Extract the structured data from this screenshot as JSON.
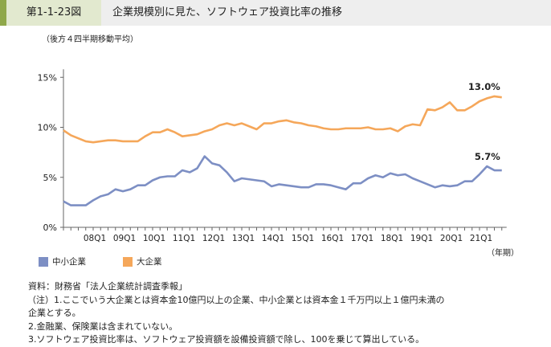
{
  "header": {
    "figure_no": "第1-1-23図",
    "title": "企業規模別に見た、ソフトウェア投資比率の推移"
  },
  "colors": {
    "sme": "#7d8fc4",
    "large": "#f5a75a",
    "stripe": "#8fa84a"
  },
  "chart_data": {
    "type": "line",
    "subtitle": "（後方４四半期移動平均）",
    "xlabel": "（年期）",
    "ylim": [
      0,
      15
    ],
    "yticks": [
      "0%",
      "5%",
      "10%",
      "15%"
    ],
    "xtick_labels": [
      "08Q1",
      "09Q1",
      "10Q1",
      "11Q1",
      "12Q1",
      "13Q1",
      "14Q1",
      "15Q1",
      "16Q1",
      "17Q1",
      "18Q1",
      "19Q1",
      "20Q1",
      "21Q1"
    ],
    "x_range": [
      "07Q1",
      "21Q4"
    ],
    "legend_position": "bottom-left",
    "series": [
      {
        "name": "中小企業",
        "end_label": "5.7%",
        "values": [
          2.6,
          2.2,
          2.2,
          2.2,
          2.7,
          3.1,
          3.3,
          3.8,
          3.6,
          3.8,
          4.2,
          4.2,
          4.7,
          5.0,
          5.1,
          5.1,
          5.7,
          5.5,
          5.9,
          7.1,
          6.4,
          6.2,
          5.5,
          4.6,
          4.9,
          4.8,
          4.7,
          4.6,
          4.1,
          4.3,
          4.2,
          4.1,
          4.0,
          4.0,
          4.3,
          4.3,
          4.2,
          4.0,
          3.8,
          4.4,
          4.4,
          4.9,
          5.2,
          5.0,
          5.4,
          5.2,
          5.3,
          4.9,
          4.6,
          4.3,
          4.0,
          4.2,
          4.1,
          4.2,
          4.6,
          4.6,
          5.3,
          6.1,
          5.7,
          5.7
        ]
      },
      {
        "name": "大企業",
        "end_label": "13.0%",
        "values": [
          9.7,
          9.2,
          8.9,
          8.6,
          8.5,
          8.6,
          8.7,
          8.7,
          8.6,
          8.6,
          8.6,
          9.1,
          9.5,
          9.5,
          9.8,
          9.5,
          9.1,
          9.2,
          9.3,
          9.6,
          9.8,
          10.2,
          10.4,
          10.2,
          10.4,
          10.1,
          9.8,
          10.4,
          10.4,
          10.6,
          10.7,
          10.5,
          10.4,
          10.2,
          10.1,
          9.9,
          9.8,
          9.8,
          9.9,
          9.9,
          9.9,
          10.0,
          9.8,
          9.8,
          9.9,
          9.6,
          10.1,
          10.3,
          10.2,
          11.8,
          11.7,
          12.0,
          12.5,
          11.7,
          11.7,
          12.1,
          12.6,
          12.9,
          13.1,
          13.0
        ]
      }
    ]
  },
  "notes": [
    "資料：財務省「法人企業統計調査季報」",
    "（注）1.ここでいう大企業とは資本金10億円以上の企業、中小企業とは資本金１千万円以上１億円未満の",
    "企業とする。",
    "2.金融業、保険業は含まれていない。",
    "3.ソフトウェア投資比率は、ソフトウェア投資額を設備投資額で除し、100を乗じて算出している。"
  ]
}
